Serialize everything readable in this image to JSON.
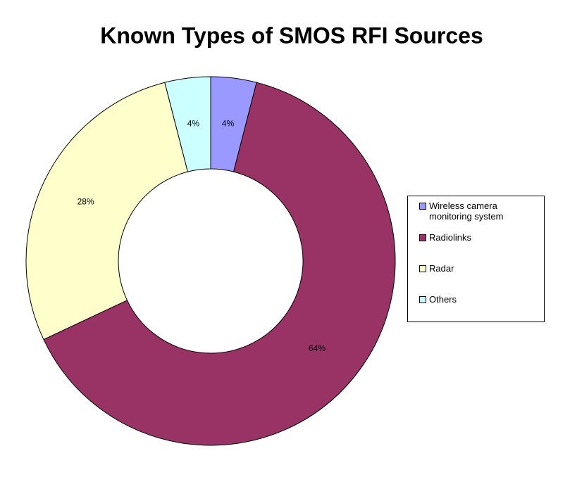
{
  "chart_data": {
    "type": "donut",
    "title": "Known Types of SMOS RFI Sources",
    "categories": [
      "Wireless camera monitoring system",
      "Radiolinks",
      "Radar",
      "Others"
    ],
    "values": [
      4,
      64,
      28,
      4
    ],
    "value_labels": [
      "4%",
      "64%",
      "28%",
      "4%"
    ],
    "colors": [
      "#9999ff",
      "#993366",
      "#ffffcc",
      "#ccffff"
    ],
    "legend": "right"
  }
}
